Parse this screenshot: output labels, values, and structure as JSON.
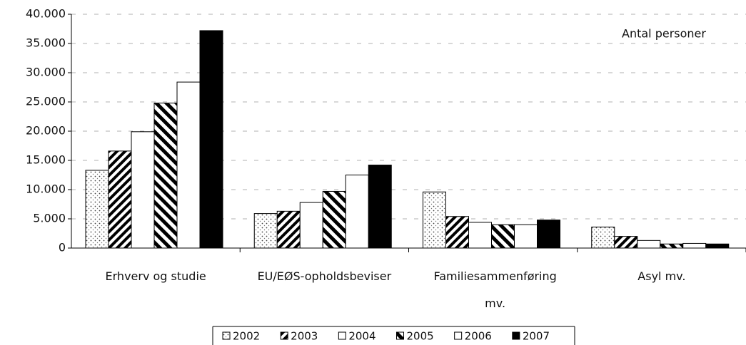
{
  "chart_data": {
    "type": "bar",
    "annotation": "Antal personer",
    "categories": [
      "Erhverv og studie",
      "EU/EØS-opholdsbeviser",
      "Familiesammenføring mv.",
      "Asyl mv."
    ],
    "series": [
      {
        "name": "2002",
        "color": "#ffffff",
        "pattern": "dots",
        "values": [
          13300,
          5900,
          9600,
          3600
        ]
      },
      {
        "name": "2003",
        "color": "#ffffff",
        "pattern": "hatch-thin",
        "values": [
          16600,
          6300,
          5400,
          2000
        ]
      },
      {
        "name": "2004",
        "color": "#ffffff",
        "pattern": "none",
        "values": [
          19900,
          7800,
          4400,
          1300
        ]
      },
      {
        "name": "2005",
        "color": "#ffffff",
        "pattern": "hatch-thick",
        "values": [
          24800,
          9700,
          4000,
          700
        ]
      },
      {
        "name": "2006",
        "color": "#ffffff",
        "pattern": "none",
        "values": [
          28400,
          12500,
          4000,
          800
        ]
      },
      {
        "name": "2007",
        "color": "#000000",
        "pattern": "none",
        "values": [
          37200,
          14200,
          4800,
          700
        ]
      }
    ],
    "ylim": [
      0,
      40000
    ],
    "yticks": [
      0,
      {
        "value": 5000,
        "label": "5.000"
      },
      {
        "value": 10000,
        "label": "10.000"
      },
      {
        "value": 15000,
        "label": "15.000"
      },
      {
        "value": 20000,
        "label": "20.000"
      },
      {
        "value": 25000,
        "label": "25.000"
      },
      {
        "value": 30000,
        "label": "30.000"
      },
      {
        "value": 35000,
        "label": "35.000"
      },
      {
        "value": 40000,
        "label": "40.000"
      }
    ],
    "grid": true
  }
}
